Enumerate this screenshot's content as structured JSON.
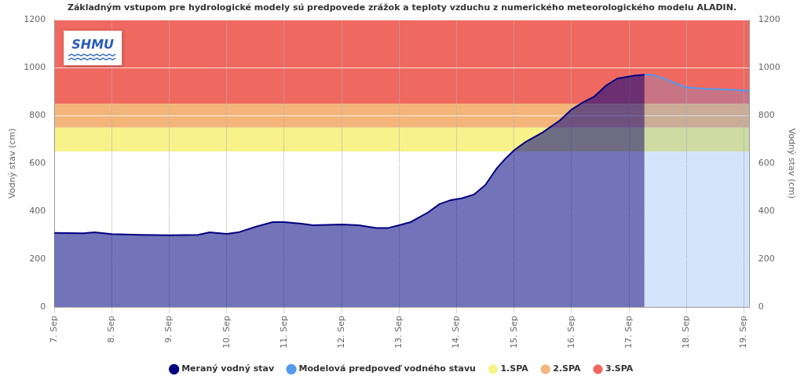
{
  "chart_data": {
    "type": "line",
    "title": "Základným vstupom pre hydrologické modely sú predpovede zrážok a teploty vzduchu z numerického meteorologického modelu ALADIN.",
    "logo_text": "SHMU",
    "y_label": "Vodný stav (cm)",
    "y2_label": "Vodný stav (cm)",
    "x": [
      7,
      7.5,
      7.7,
      8,
      8.5,
      9,
      9.5,
      9.7,
      10,
      10.2,
      10.5,
      10.8,
      11,
      11.3,
      11.5,
      12,
      12.3,
      12.6,
      12.8,
      13,
      13.2,
      13.5,
      13.7,
      13.9,
      14.1,
      14.3,
      14.5,
      14.7,
      14.85,
      15,
      15.2,
      15.5,
      15.8,
      16,
      16.2,
      16.4,
      16.6,
      16.8,
      17,
      17.1,
      17.27,
      17.4,
      17.6,
      17.8,
      18,
      18.3,
      18.6,
      19,
      19.1
    ],
    "xlim": [
      7,
      19.1
    ],
    "xticks": [
      {
        "value": 7,
        "label": "7. Sep"
      },
      {
        "value": 8,
        "label": "8. Sep"
      },
      {
        "value": 9,
        "label": "9. Sep"
      },
      {
        "value": 10,
        "label": "10. Sep"
      },
      {
        "value": 11,
        "label": "11. Sep"
      },
      {
        "value": 12,
        "label": "12. Sep"
      },
      {
        "value": 13,
        "label": "13. Sep"
      },
      {
        "value": 14,
        "label": "14. Sep"
      },
      {
        "value": 15,
        "label": "15. Sep"
      },
      {
        "value": 16,
        "label": "16. Sep"
      },
      {
        "value": 17,
        "label": "17. Sep"
      },
      {
        "value": 18,
        "label": "18. Sep"
      },
      {
        "value": 19,
        "label": "19. Sep"
      }
    ],
    "ylim": [
      0,
      1200
    ],
    "yticks": [
      0,
      200,
      400,
      600,
      800,
      1000,
      1200
    ],
    "y2lim": [
      0,
      1200
    ],
    "y2ticks": [
      0,
      200,
      400,
      600,
      800,
      1000,
      1200
    ],
    "grid": true,
    "legend": "bottom",
    "series": [
      {
        "name": "Meraný vodný stav",
        "color": "#000080",
        "values": [
          310,
          308,
          312,
          305,
          302,
          300,
          302,
          312,
          306,
          312,
          335,
          355,
          355,
          348,
          342,
          345,
          342,
          330,
          330,
          342,
          355,
          395,
          430,
          447,
          455,
          470,
          510,
          580,
          620,
          655,
          690,
          730,
          780,
          825,
          855,
          880,
          925,
          955,
          963,
          967,
          970,
          null,
          null,
          null,
          null,
          null,
          null,
          null,
          null
        ]
      },
      {
        "name": "Modelová predpoveď vodného stavu",
        "color": "#5599ee",
        "values": [
          null,
          null,
          null,
          null,
          null,
          null,
          null,
          null,
          null,
          null,
          null,
          null,
          null,
          null,
          null,
          null,
          null,
          null,
          null,
          null,
          null,
          null,
          null,
          null,
          null,
          null,
          null,
          null,
          null,
          null,
          null,
          null,
          null,
          null,
          null,
          null,
          null,
          null,
          null,
          null,
          970,
          970,
          955,
          935,
          918,
          912,
          910,
          905,
          902
        ]
      }
    ],
    "bands": [
      {
        "name": "1.SPA",
        "color": "#f7f28a",
        "from": 650,
        "to": 750
      },
      {
        "name": "2.SPA",
        "color": "#f3b57a",
        "from": 750,
        "to": 850
      },
      {
        "name": "3.SPA",
        "color": "#ef6960",
        "from": 850,
        "to": 1200
      }
    ]
  }
}
